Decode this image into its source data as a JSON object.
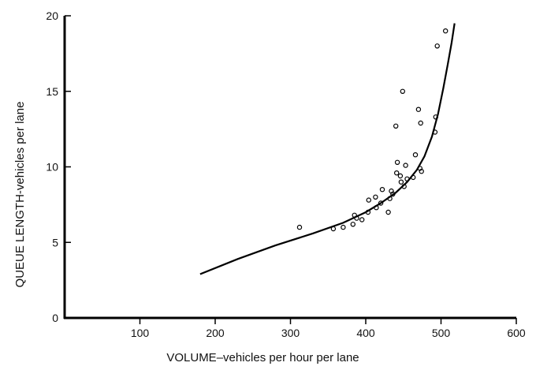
{
  "chart_data": {
    "type": "scatter",
    "xlabel": "VOLUME–vehicles per hour per lane",
    "ylabel": "QUEUE LENGTH-vehicles per lane",
    "xlim": [
      0,
      600
    ],
    "ylim": [
      0,
      20
    ],
    "x_ticks": [
      "100",
      "200",
      "300",
      "400",
      "500",
      "600"
    ],
    "y_ticks": [
      "0",
      "5",
      "10",
      "15",
      "20"
    ],
    "grid": false,
    "legend": "none",
    "series": [
      {
        "type": "scatter",
        "points": [
          [
            312,
            6.0
          ],
          [
            357,
            5.9
          ],
          [
            370,
            6.0
          ],
          [
            383,
            6.2
          ],
          [
            385,
            6.8
          ],
          [
            388,
            6.6
          ],
          [
            395,
            6.5
          ],
          [
            403,
            7.0
          ],
          [
            404,
            7.8
          ],
          [
            413,
            8.0
          ],
          [
            414,
            7.3
          ],
          [
            420,
            7.6
          ],
          [
            422,
            8.5
          ],
          [
            430,
            7.0
          ],
          [
            432,
            7.9
          ],
          [
            434,
            8.4
          ],
          [
            436,
            8.2
          ],
          [
            440,
            12.7
          ],
          [
            441,
            9.6
          ],
          [
            442,
            10.3
          ],
          [
            446,
            9.4
          ],
          [
            447,
            9.0
          ],
          [
            449,
            15.0
          ],
          [
            451,
            8.7
          ],
          [
            453,
            10.1
          ],
          [
            455,
            9.2
          ],
          [
            463,
            9.3
          ],
          [
            466,
            10.8
          ],
          [
            470,
            13.8
          ],
          [
            472,
            9.9
          ],
          [
            473,
            12.9
          ],
          [
            474,
            9.7
          ],
          [
            492,
            12.3
          ],
          [
            493,
            13.3
          ],
          [
            495,
            18.0
          ],
          [
            506,
            19.0
          ]
        ]
      },
      {
        "type": "line",
        "points": [
          [
            180,
            2.9
          ],
          [
            230,
            3.9
          ],
          [
            280,
            4.8
          ],
          [
            330,
            5.6
          ],
          [
            370,
            6.3
          ],
          [
            400,
            7.0
          ],
          [
            420,
            7.6
          ],
          [
            440,
            8.3
          ],
          [
            455,
            9.0
          ],
          [
            468,
            9.8
          ],
          [
            478,
            10.7
          ],
          [
            488,
            12.0
          ],
          [
            496,
            13.5
          ],
          [
            503,
            15.2
          ],
          [
            509,
            16.8
          ],
          [
            514,
            18.2
          ],
          [
            518,
            19.5
          ]
        ]
      }
    ]
  }
}
